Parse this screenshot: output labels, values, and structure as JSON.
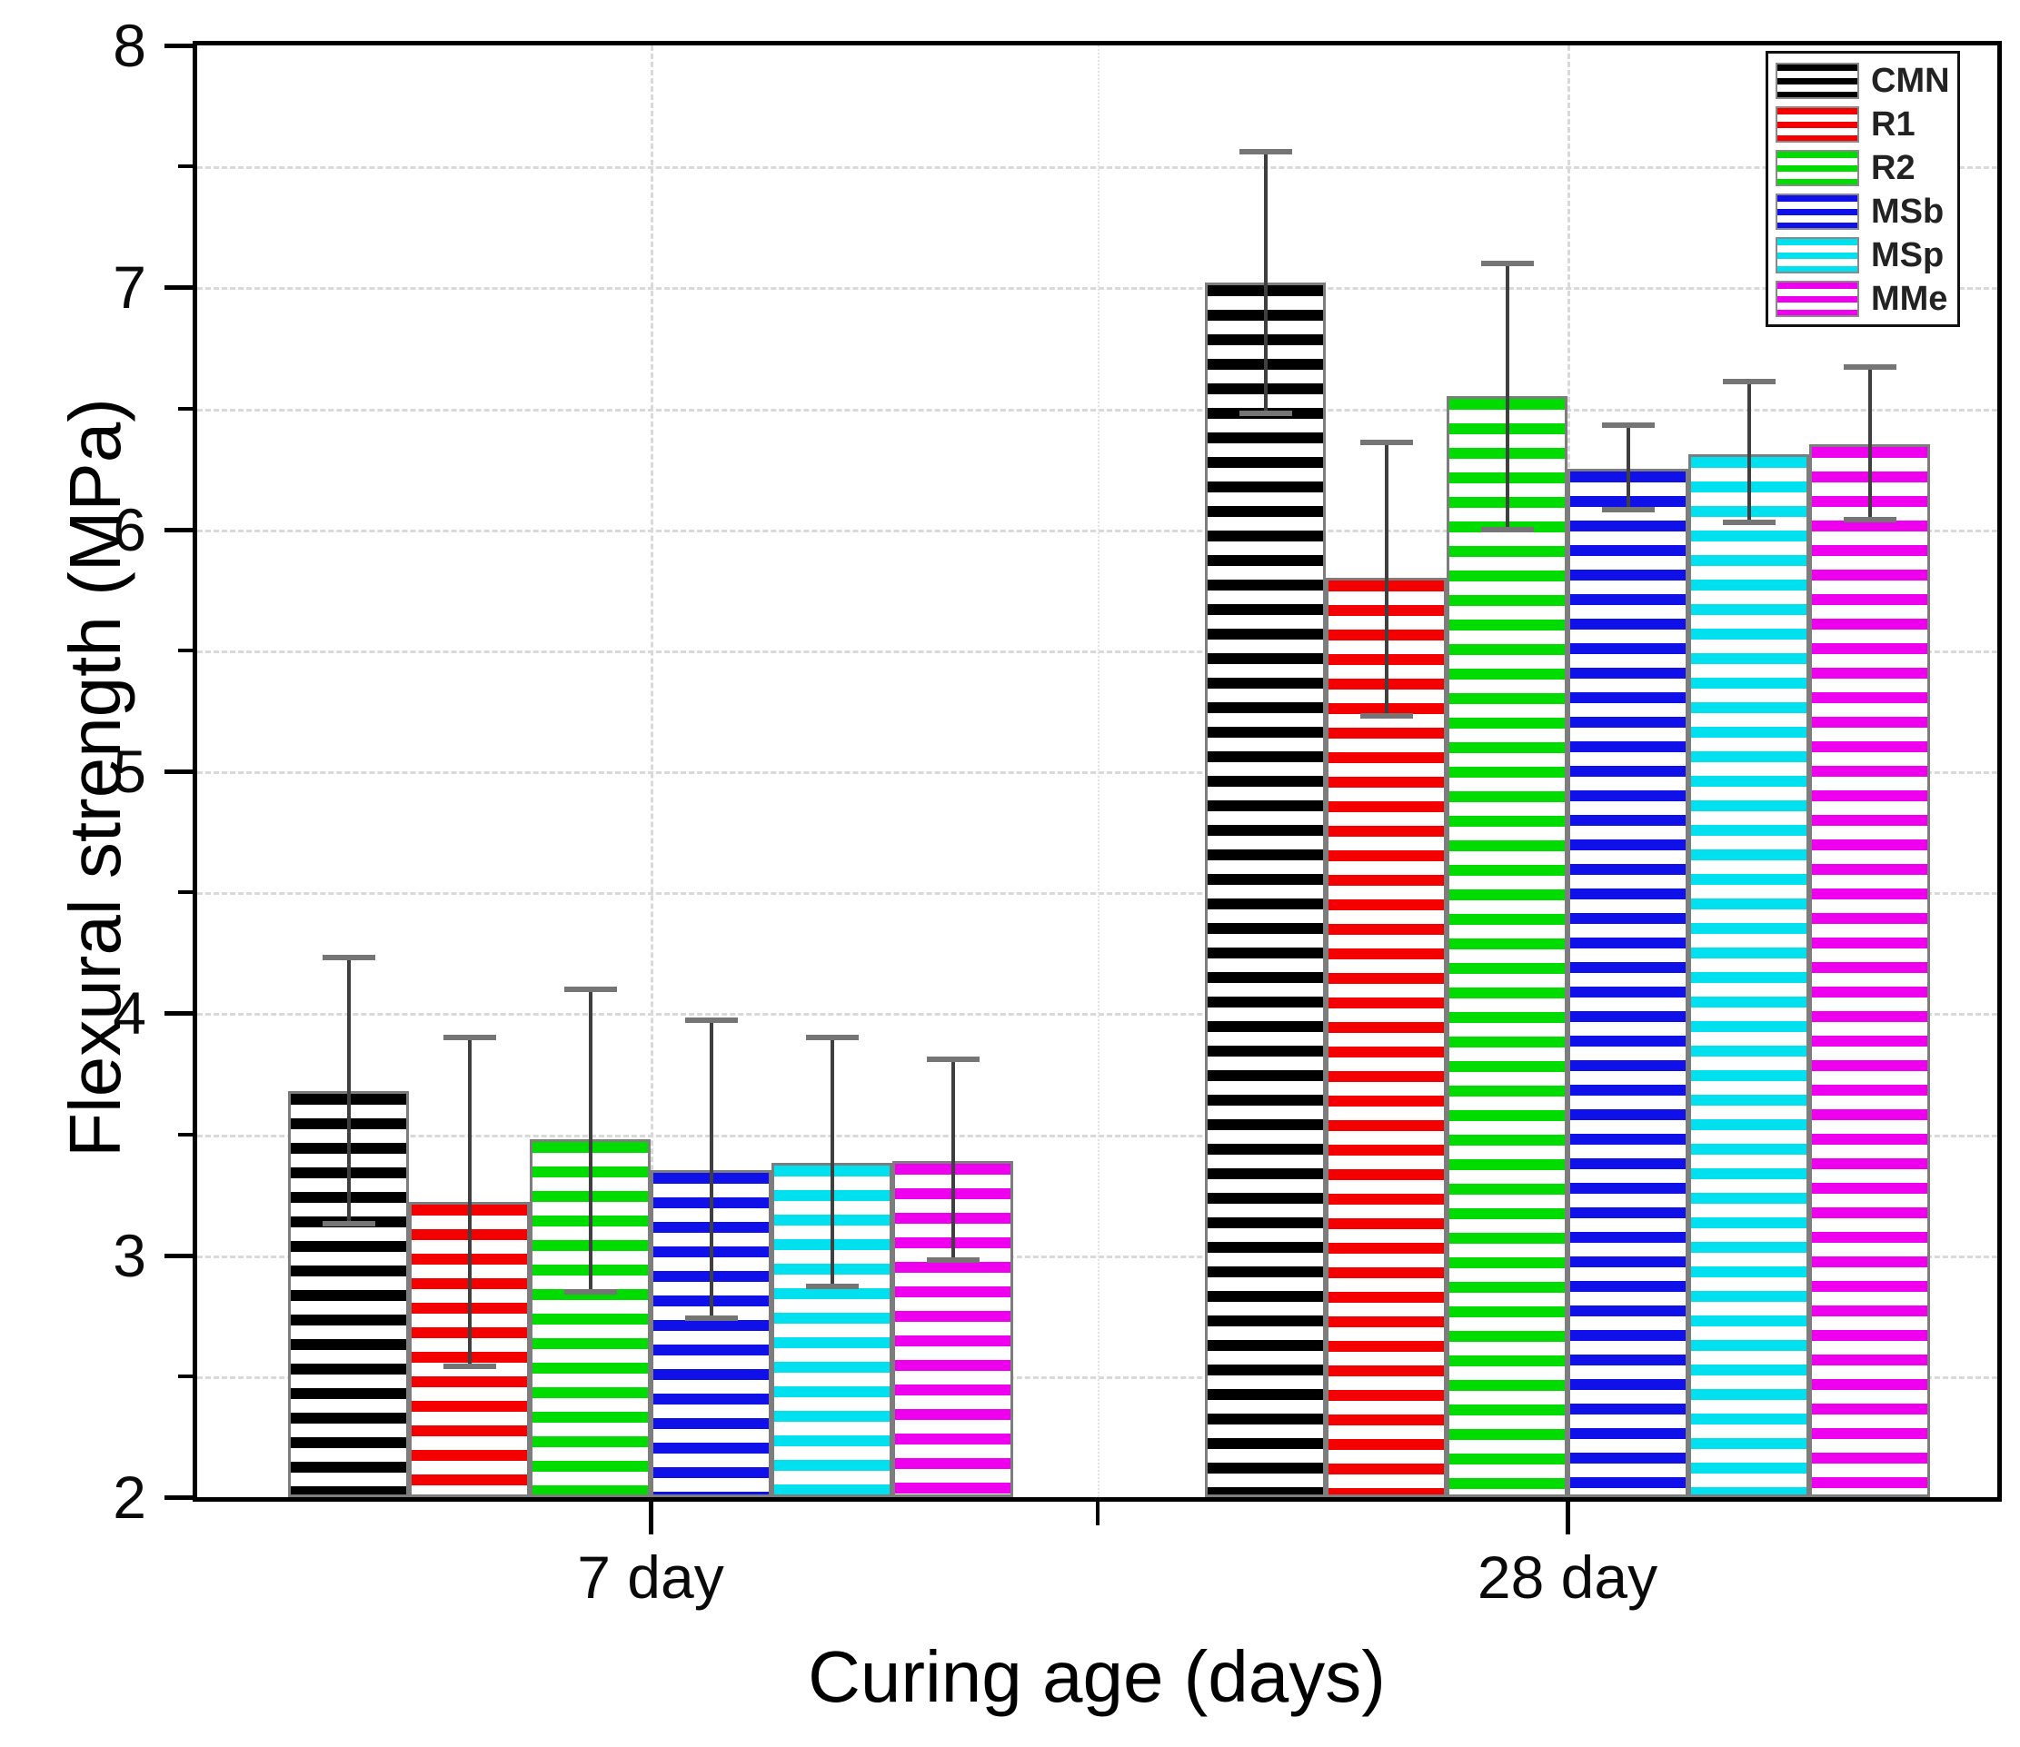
{
  "chart_data": {
    "type": "bar",
    "title": "",
    "xlabel": "Curing age (days)",
    "ylabel": "Flexural strength (MPa)",
    "categories": [
      "7 day",
      "28 day"
    ],
    "ylim": [
      2,
      8
    ],
    "ytick_labels": [
      "2",
      "3",
      "4",
      "5",
      "6",
      "7",
      "8"
    ],
    "ytick_minor_step": 0.5,
    "grid": {
      "horizontal": "dashed light-gray every 0.5 MPa",
      "vertical": "dashed light-gray at each category center, dotted at group boundary"
    },
    "legend": {
      "position": "top-right",
      "entries": [
        "CMN",
        "R1",
        "R2",
        "MSb",
        "MSp",
        "MMe"
      ]
    },
    "bar_style": "horizontal color stripes on white, gray outline, error bars with caps",
    "series": [
      {
        "name": "CMN",
        "color": "#000000",
        "values": [
          3.68,
          7.02
        ],
        "error_plus": [
          0.55,
          0.54
        ],
        "error_minus": [
          0.55,
          0.54
        ]
      },
      {
        "name": "R1",
        "color": "#f50000",
        "values": [
          3.22,
          5.8
        ],
        "error_plus": [
          0.68,
          0.56
        ],
        "error_minus": [
          0.68,
          0.57
        ]
      },
      {
        "name": "R2",
        "color": "#00dc00",
        "values": [
          3.48,
          6.55
        ],
        "error_plus": [
          0.62,
          0.55
        ],
        "error_minus": [
          0.63,
          0.55
        ]
      },
      {
        "name": "MSb",
        "color": "#1010e8",
        "values": [
          3.35,
          6.25
        ],
        "error_plus": [
          0.62,
          0.18
        ],
        "error_minus": [
          0.61,
          0.17
        ]
      },
      {
        "name": "MSp",
        "color": "#00e0ee",
        "values": [
          3.38,
          6.31
        ],
        "error_plus": [
          0.52,
          0.3
        ],
        "error_minus": [
          0.51,
          0.28
        ]
      },
      {
        "name": "MMe",
        "color": "#ee00ee",
        "values": [
          3.39,
          6.35
        ],
        "error_plus": [
          0.42,
          0.32
        ],
        "error_minus": [
          0.41,
          0.31
        ]
      }
    ]
  }
}
